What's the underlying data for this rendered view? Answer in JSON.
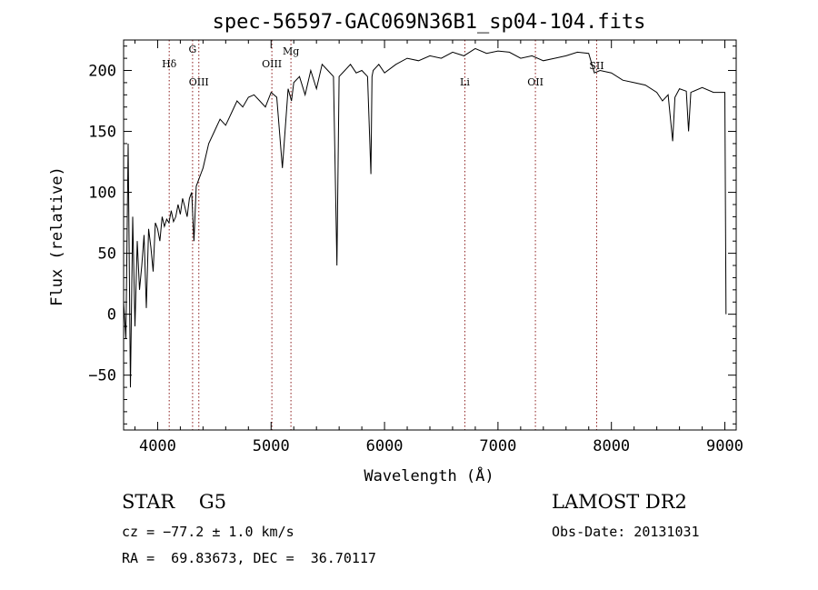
{
  "chart_data": {
    "type": "line",
    "title": "spec-56597-GAC069N36B1_sp04-104.fits",
    "xlabel": "Wavelength (Å)",
    "ylabel": "Flux (relative)",
    "xlim": [
      3700,
      9100
    ],
    "ylim": [
      -95,
      225
    ],
    "xticks": [
      4000,
      5000,
      6000,
      7000,
      8000,
      9000
    ],
    "yticks": [
      -50,
      0,
      50,
      100,
      150,
      200
    ],
    "grid": false,
    "series": [
      {
        "x": [
          3700,
          3720,
          3740,
          3760,
          3780,
          3800,
          3820,
          3840,
          3860,
          3880,
          3900,
          3920,
          3940,
          3960,
          3980,
          4000,
          4020,
          4040,
          4060,
          4080,
          4100,
          4120,
          4140,
          4160,
          4180,
          4200,
          4220,
          4240,
          4260,
          4280,
          4300,
          4320,
          4340,
          4360,
          4380,
          4400,
          4450,
          4500,
          4550,
          4600,
          4650,
          4700,
          4750,
          4800,
          4850,
          4900,
          4950,
          5000,
          5050,
          5100,
          5150,
          5180,
          5200,
          5250,
          5300,
          5350,
          5400,
          5450,
          5500,
          5550,
          5580,
          5600,
          5650,
          5700,
          5750,
          5800,
          5850,
          5880,
          5890,
          5900,
          5950,
          6000,
          6100,
          6200,
          6300,
          6400,
          6500,
          6600,
          6700,
          6800,
          6900,
          7000,
          7100,
          7200,
          7300,
          7400,
          7500,
          7600,
          7700,
          7800,
          7850,
          7900,
          8000,
          8100,
          8200,
          8300,
          8400,
          8450,
          8500,
          8540,
          8560,
          8600,
          8660,
          8680,
          8700,
          8800,
          8900,
          9000,
          9010
        ],
        "y": [
          10,
          -20,
          140,
          -60,
          80,
          -10,
          60,
          20,
          40,
          65,
          5,
          70,
          55,
          35,
          75,
          70,
          60,
          80,
          72,
          78,
          75,
          85,
          76,
          80,
          90,
          82,
          95,
          88,
          80,
          95,
          100,
          60,
          105,
          110,
          115,
          120,
          140,
          150,
          160,
          155,
          165,
          175,
          170,
          178,
          180,
          175,
          170,
          182,
          178,
          120,
          185,
          175,
          190,
          195,
          180,
          200,
          185,
          205,
          200,
          195,
          40,
          195,
          200,
          205,
          198,
          200,
          195,
          115,
          195,
          200,
          205,
          198,
          205,
          210,
          208,
          212,
          210,
          215,
          212,
          218,
          214,
          216,
          215,
          210,
          212,
          208,
          210,
          212,
          215,
          214,
          198,
          200,
          198,
          192,
          190,
          188,
          182,
          175,
          180,
          142,
          178,
          185,
          183,
          150,
          182,
          186,
          182,
          182,
          0
        ]
      }
    ],
    "annotations": [
      {
        "label": "Hδ",
        "x": 4102
      },
      {
        "label": "G",
        "x": 4308
      },
      {
        "label": "OIII",
        "x": 4363
      },
      {
        "label": "OIII",
        "x": 5007
      },
      {
        "label": "Mg",
        "x": 5175
      },
      {
        "label": "Li",
        "x": 6708
      },
      {
        "label": "OII",
        "x": 7330
      },
      {
        "label": "SII",
        "x": 7870
      }
    ]
  },
  "info": {
    "class_line": "STAR    G5",
    "cz_line": "cz = −77.2 ± 1.0 km/s",
    "radec_line": "RA =  69.83673, DEC =  36.70117",
    "survey": "LAMOST DR2",
    "obs_date": "Obs-Date: 20131031"
  }
}
